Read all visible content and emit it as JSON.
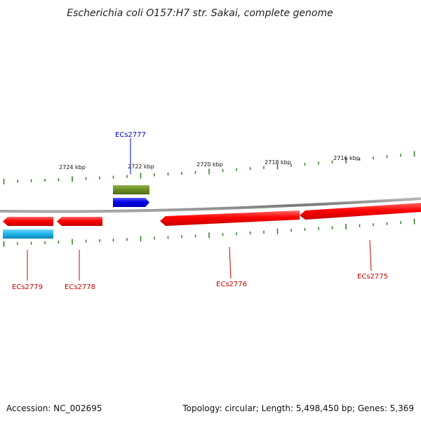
{
  "map": {
    "title": "Escherichia coli O157:H7 str. Sakai, complete genome",
    "accession": "Accession: NC_002695",
    "summary": "Topology: circular; Length: 5,498,450 bp; Genes: 5,369"
  },
  "ruler": {
    "labels": [
      "2724 kbp",
      "2722 kbp",
      "2720 kbp",
      "2718 kbp",
      "2716 kbp"
    ]
  },
  "genes": [
    {
      "name": "ECs2777",
      "color": "#0000cc"
    },
    {
      "name": "ECs2779",
      "color": "#cc0000"
    },
    {
      "name": "ECs2778",
      "color": "#cc0000"
    },
    {
      "name": "ECs2776",
      "color": "#cc0000"
    },
    {
      "name": "ECs2775",
      "color": "#cc0000"
    }
  ],
  "colors": {
    "backbone": "#888888",
    "ticks": "#2a7a1a",
    "forward_cds": "#0000ee",
    "reverse_cds": "#ee0000",
    "rna_feature": "#6b8e23",
    "other_feature": "#1fb4e6"
  }
}
